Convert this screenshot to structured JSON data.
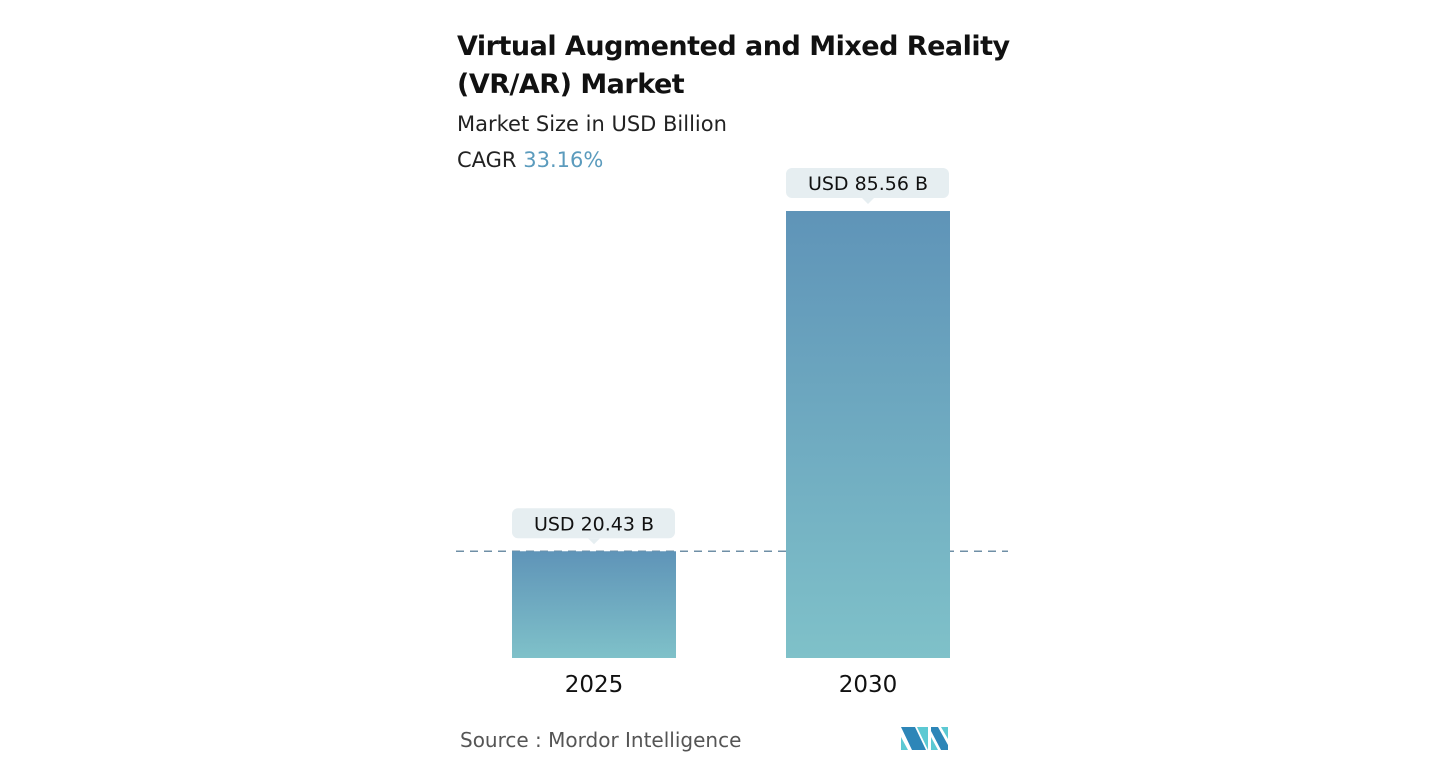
{
  "chart_data": {
    "type": "bar",
    "title": "Virtual Augmented and Mixed Reality (VR/AR) Market",
    "subtitle": "Market Size in USD Billion",
    "cagr_label": "CAGR",
    "cagr_value": "33.16%",
    "categories": [
      "2025",
      "2030"
    ],
    "values": [
      20.43,
      85.56
    ],
    "data_labels": [
      "USD 20.43 B",
      "USD 85.56 B"
    ],
    "xlabel": "",
    "ylabel": "",
    "reference_line": 20.43,
    "grid": false,
    "colors": {
      "bar_top": "#5f94b8",
      "bar_bottom": "#7fc1c9",
      "label_bg": "#e6eef1",
      "accent": "#5b9bbd"
    }
  },
  "source": "Source :  Mordor Intelligence",
  "logo": {
    "text": "Mordor Intelligence",
    "icon": "mordor-logo-icon"
  }
}
